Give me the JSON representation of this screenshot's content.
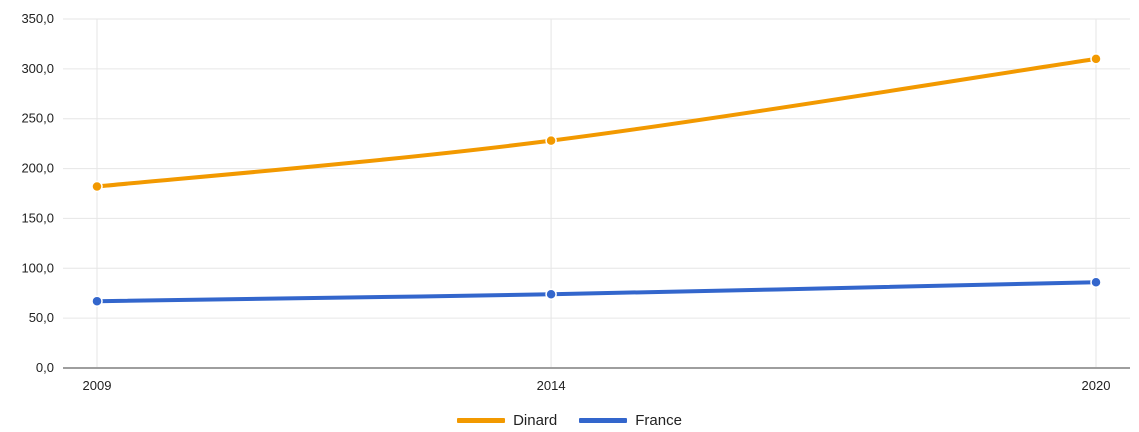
{
  "chart_data": {
    "type": "line",
    "title": "",
    "xlabel": "",
    "ylabel": "",
    "categories": [
      "2009",
      "2014",
      "2020"
    ],
    "x": [
      2009,
      2014,
      2020
    ],
    "series": [
      {
        "name": "Dinard",
        "color": "#f29900",
        "values": [
          182.0,
          228.0,
          310.0
        ]
      },
      {
        "name": "France",
        "color": "#3366cc",
        "values": [
          67.0,
          74.0,
          86.0
        ]
      }
    ],
    "ylim": [
      0,
      350
    ],
    "yticks": [
      0,
      50,
      100,
      150,
      200,
      250,
      300,
      350
    ],
    "ytick_labels": [
      "0,0",
      "50,0",
      "100,0",
      "150,0",
      "200,0",
      "250,0",
      "300,0",
      "350,0"
    ],
    "xtick_labels": [
      "2009",
      "2014",
      "2020"
    ],
    "grid": true,
    "legend_position": "bottom"
  }
}
